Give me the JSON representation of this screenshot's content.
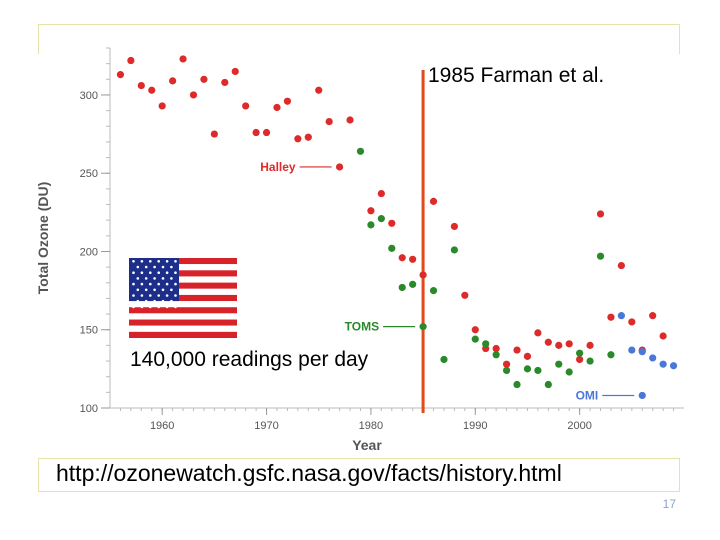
{
  "slide": {
    "url_text": "http://ozonewatch.gsfc.nasa.gov/facts/history.html",
    "page_number": "17"
  },
  "annotations": {
    "farman_label": "1985 Farman et al.",
    "readings_label": "140,000 readings per day",
    "farman_year": 1985,
    "farman_line_color": "#e04a1c"
  },
  "flag": {
    "icon": "us-flag-icon"
  },
  "chart_data": {
    "type": "scatter",
    "xlabel": "Year",
    "ylabel": "Total Ozone (DU)",
    "xlim": [
      1955,
      2010
    ],
    "ylim": [
      100,
      330
    ],
    "xticks": [
      1960,
      1970,
      1980,
      1990,
      2000
    ],
    "yticks": [
      100,
      150,
      200,
      250,
      300
    ],
    "series": [
      {
        "name": "Halley",
        "color": "#dd2a2a",
        "points": [
          [
            1956,
            313
          ],
          [
            1957,
            322
          ],
          [
            1958,
            306
          ],
          [
            1959,
            303
          ],
          [
            1960,
            293
          ],
          [
            1961,
            309
          ],
          [
            1962,
            323
          ],
          [
            1963,
            300
          ],
          [
            1964,
            310
          ],
          [
            1965,
            275
          ],
          [
            1966,
            308
          ],
          [
            1967,
            315
          ],
          [
            1968,
            293
          ],
          [
            1969,
            276
          ],
          [
            1970,
            276
          ],
          [
            1971,
            292
          ],
          [
            1972,
            296
          ],
          [
            1973,
            272
          ],
          [
            1974,
            273
          ],
          [
            1975,
            303
          ],
          [
            1976,
            283
          ],
          [
            1978,
            284
          ],
          [
            1980,
            226
          ],
          [
            1981,
            237
          ],
          [
            1982,
            218
          ],
          [
            1983,
            196
          ],
          [
            1984,
            195
          ],
          [
            1985,
            185
          ],
          [
            1986,
            232
          ],
          [
            1988,
            216
          ],
          [
            1989,
            172
          ],
          [
            1990,
            150
          ],
          [
            1991,
            138
          ],
          [
            1992,
            138
          ],
          [
            1993,
            128
          ],
          [
            1994,
            137
          ],
          [
            1995,
            133
          ],
          [
            1996,
            148
          ],
          [
            1997,
            142
          ],
          [
            1998,
            140
          ],
          [
            1999,
            141
          ],
          [
            2000,
            131
          ],
          [
            2001,
            140
          ],
          [
            2002,
            224
          ],
          [
            2003,
            158
          ],
          [
            2004,
            191
          ],
          [
            2005,
            155
          ],
          [
            2006,
            137
          ],
          [
            2007,
            159
          ],
          [
            2008,
            146
          ]
        ]
      },
      {
        "name": "TOMS",
        "color": "#2a8a2a",
        "points": [
          [
            1979,
            264
          ],
          [
            1980,
            217
          ],
          [
            1981,
            221
          ],
          [
            1982,
            202
          ],
          [
            1983,
            177
          ],
          [
            1984,
            179
          ],
          [
            1986,
            175
          ],
          [
            1987,
            131
          ],
          [
            1988,
            201
          ],
          [
            1990,
            144
          ],
          [
            1991,
            141
          ],
          [
            1992,
            134
          ],
          [
            1993,
            124
          ],
          [
            1994,
            115
          ],
          [
            1995,
            125
          ],
          [
            1996,
            124
          ],
          [
            1997,
            115
          ],
          [
            1998,
            128
          ],
          [
            1999,
            123
          ],
          [
            2000,
            135
          ],
          [
            2001,
            130
          ],
          [
            2002,
            197
          ],
          [
            2003,
            134
          ]
        ]
      },
      {
        "name": "OMI",
        "color": "#4a78d8",
        "points": [
          [
            2004,
            159
          ],
          [
            2005,
            137
          ],
          [
            2006,
            136
          ],
          [
            2007,
            132
          ],
          [
            2008,
            128
          ],
          [
            2009,
            127
          ]
        ]
      }
    ],
    "series_label_points": [
      {
        "name": "Halley",
        "year": 1977,
        "value": 254
      },
      {
        "name": "TOMS",
        "year": 1985,
        "value": 152
      },
      {
        "name": "OMI",
        "year": 2006,
        "value": 108
      }
    ]
  }
}
